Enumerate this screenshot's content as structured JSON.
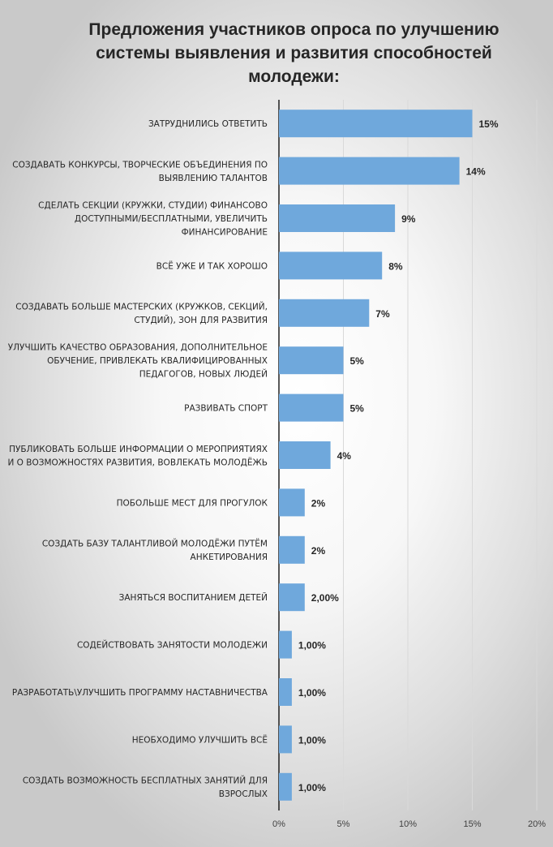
{
  "chart_data": {
    "type": "bar",
    "orientation": "horizontal",
    "title": "Предложения участников опроса по улучшению системы выявления и развития способностей молодежи:",
    "xlim": [
      0,
      20
    ],
    "xticks": [
      "0%",
      "5%",
      "10%",
      "15%",
      "20%"
    ],
    "gridlines": "vertical",
    "bar_color": "#6fa8dc",
    "categories": [
      "ЗАТРУДНИЛИСЬ ОТВЕТИТЬ",
      "СОЗДАВАТЬ КОНКУРСЫ, ТВОРЧЕСКИЕ ОБЪЕДИНЕНИЯ ПО ВЫЯВЛЕНИЮ ТАЛАНТОВ",
      "СДЕЛАТЬ СЕКЦИИ (КРУЖКИ, СТУДИИ) ФИНАНСОВО ДОСТУПНЫМИ/БЕСПЛАТНЫМИ, УВЕЛИЧИТЬ ФИНАНСИРОВАНИЕ",
      "ВСЁ УЖЕ И ТАК ХОРОШО",
      "СОЗДАВАТЬ БОЛЬШЕ МАСТЕРСКИХ (КРУЖКОВ, СЕКЦИЙ, СТУДИЙ), ЗОН ДЛЯ РАЗВИТИЯ",
      "УЛУЧШИТЬ КАЧЕСТВО ОБРАЗОВАНИЯ, ДОПОЛНИТЕЛЬНОЕ ОБУЧЕНИЕ, ПРИВЛЕКАТЬ КВАЛИФИЦИРОВАННЫХ ПЕДАГОГОВ, НОВЫХ ЛЮДЕЙ",
      "РАЗВИВАТЬ СПОРТ",
      "ПУБЛИКОВАТЬ БОЛЬШЕ ИНФОРМАЦИИ О МЕРОПРИЯТИЯХ И О ВОЗМОЖНОСТЯХ РАЗВИТИЯ, ВОВЛЕКАТЬ МОЛОДЁЖЬ",
      "ПОБОЛЬШЕ МЕСТ ДЛЯ ПРОГУЛОК",
      "СОЗДАТЬ БАЗУ ТАЛАНТЛИВОЙ МОЛОДЁЖИ ПУТЁМ АНКЕТИРОВАНИЯ",
      "ЗАНЯТЬСЯ ВОСПИТАНИЕМ ДЕТЕЙ",
      "СОДЕЙСТВОВАТЬ ЗАНЯТОСТИ МОЛОДЕЖИ",
      "РАЗРАБОТАТЬ\\УЛУЧШИТЬ ПРОГРАММУ НАСТАВНИЧЕСТВА",
      "НЕОБХОДИМО УЛУЧШИТЬ ВСЁ",
      "СОЗДАТЬ ВОЗМОЖНОСТЬ БЕСПЛАТНЫХ ЗАНЯТИЙ ДЛЯ ВЗРОСЛЫХ"
    ],
    "values": [
      15,
      14,
      9,
      8,
      7,
      5,
      5,
      4,
      2,
      2,
      2,
      1,
      1,
      1,
      1
    ],
    "data_labels": [
      "15%",
      "14%",
      "9%",
      "8%",
      "7%",
      "5%",
      "5%",
      "4%",
      "2%",
      "2%",
      "2,00%",
      "1,00%",
      "1,00%",
      "1,00%",
      "1,00%"
    ]
  }
}
